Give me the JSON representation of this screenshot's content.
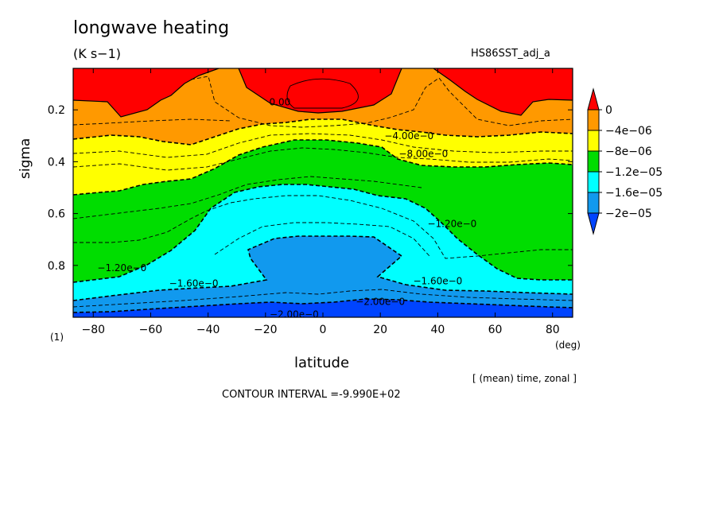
{
  "title": "longwave heating",
  "units": "(K s−1)",
  "dataset": "HS86SST_adj_a",
  "footer": {
    "averaging_note": "[ (mean) time, zonal ]",
    "contour_interval": "CONTOUR INTERVAL =-9.990E+02"
  },
  "chart_data": {
    "type": "heatmap",
    "title": "longwave heating",
    "xlabel": "latitude",
    "x_unit": "(deg)",
    "ylabel": "sigma",
    "y_corner_label": "(1)",
    "xlim": [
      -87,
      87
    ],
    "ylim": [
      0.04,
      1.0
    ],
    "y_inverted": true,
    "x_ticks": [
      -80,
      -60,
      -40,
      -20,
      0,
      20,
      40,
      60,
      80
    ],
    "y_ticks": [
      0.2,
      0.4,
      0.6,
      0.8
    ],
    "x_tick_labels": [
      "−80",
      "−60",
      "−40",
      "−20",
      "0",
      "20",
      "40",
      "60",
      "80"
    ],
    "y_tick_labels": [
      "0.2",
      "0.4",
      "0.6",
      "0.8"
    ],
    "colorbar": {
      "labels": [
        "0",
        "−4e−06",
        "−8e−06",
        "−1.2e−05",
        "−1.6e−05",
        "−2e−05"
      ],
      "colors": [
        "#ff0000",
        "#ff9900",
        "#ffff00",
        "#00dd00",
        "#00ffff",
        "#1199ee",
        "#0044ff"
      ],
      "placement": "right"
    },
    "contour_labels": [
      {
        "text": "0.00",
        "x": -15,
        "y": 0.17
      },
      {
        "text": "−4.00e−0",
        "x": 30,
        "y": 0.3
      },
      {
        "text": "−8.00e−0",
        "x": 35,
        "y": 0.37
      },
      {
        "text": "−1.20e−0",
        "x": 45,
        "y": 0.64
      },
      {
        "text": "−1.20e−0",
        "x": -70,
        "y": 0.81
      },
      {
        "text": "−1.60e−0",
        "x": -45,
        "y": 0.87
      },
      {
        "text": "−1.60e−0",
        "x": 40,
        "y": 0.86
      },
      {
        "text": "−2.00e−0",
        "x": 20,
        "y": 0.94
      },
      {
        "text": "−2.00e−0",
        "x": -10,
        "y": 0.99
      }
    ]
  }
}
